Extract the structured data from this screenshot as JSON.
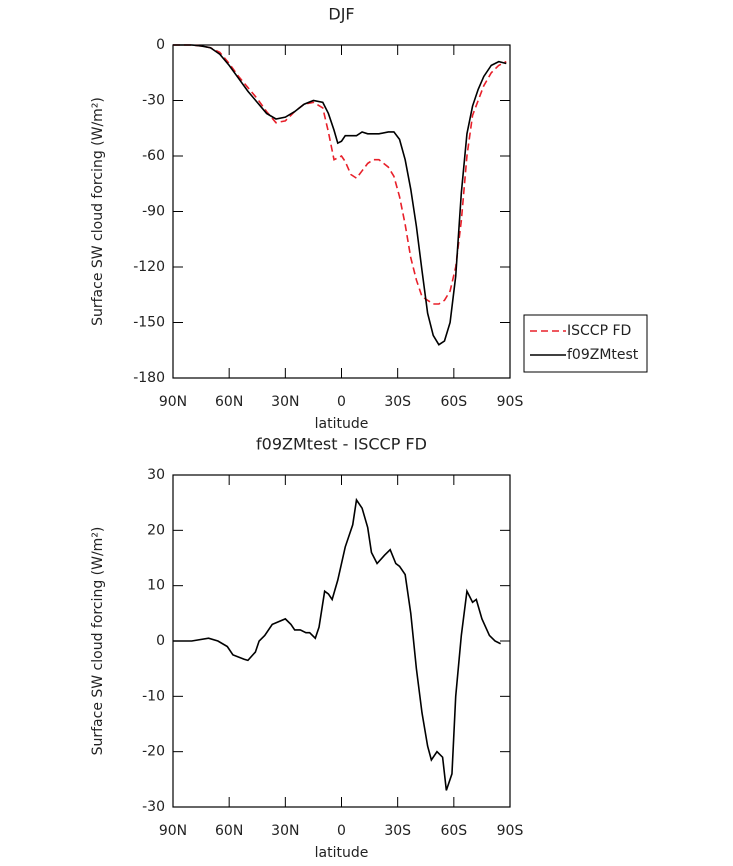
{
  "chart_data": [
    {
      "type": "line",
      "title": "DJF",
      "x_label": "latitude",
      "y_label": "Surface SW cloud forcing (W/m²)",
      "x": [
        90,
        85,
        80,
        75,
        70,
        65,
        60,
        55,
        50,
        45,
        40,
        35,
        30,
        25,
        20,
        15,
        10,
        7,
        4,
        2,
        0,
        -2,
        -5,
        -8,
        -11,
        -14,
        -17,
        -20,
        -25,
        -28,
        -31,
        -34,
        -37,
        -40,
        -43,
        -46,
        -49,
        -52,
        -55,
        -58,
        -61,
        -64,
        -67,
        -70,
        -73,
        -76,
        -80,
        -84,
        -88
      ],
      "series": [
        {
          "name": "ISCCP FD",
          "color": "#e8202a",
          "line_style": "dashed",
          "values": [
            0,
            0,
            0,
            -0.5,
            -1.5,
            -4,
            -10,
            -17,
            -23,
            -29,
            -36,
            -42,
            -41,
            -36,
            -32,
            -31,
            -34,
            -47,
            -62,
            -61,
            -60,
            -63,
            -70,
            -72,
            -68,
            -64,
            -62,
            -62,
            -66,
            -71,
            -82,
            -97,
            -115,
            -127,
            -136,
            -138,
            -140,
            -140,
            -138,
            -133,
            -120,
            -95,
            -60,
            -38,
            -30,
            -22,
            -15,
            -11,
            -9
          ]
        },
        {
          "name": "f09ZMtest",
          "color": "#000000",
          "line_style": "solid",
          "values": [
            0,
            0,
            0,
            -0.5,
            -1.5,
            -5,
            -11,
            -18,
            -25,
            -31,
            -37,
            -40,
            -39,
            -36,
            -32,
            -30,
            -31,
            -37,
            -46,
            -53,
            -52,
            -49,
            -49,
            -49,
            -47,
            -48,
            -48,
            -48,
            -47,
            -47,
            -51,
            -62,
            -78,
            -98,
            -122,
            -145,
            -157,
            -162,
            -160,
            -150,
            -125,
            -80,
            -48,
            -33,
            -24,
            -17,
            -11,
            -9,
            -10
          ]
        }
      ],
      "xlim": [
        90,
        -90
      ],
      "xticks": [
        {
          "value": 90,
          "label": "90N"
        },
        {
          "value": 60,
          "label": "60N"
        },
        {
          "value": 30,
          "label": "30N"
        },
        0,
        {
          "value": -30,
          "label": "30S"
        },
        {
          "value": -60,
          "label": "60S"
        },
        {
          "value": -90,
          "label": "90S"
        }
      ],
      "ylim": [
        -180,
        0
      ],
      "yticks": [
        0,
        -30,
        -60,
        -90,
        -120,
        -150,
        -180
      ],
      "legend": "right"
    },
    {
      "type": "line",
      "title": "f09ZMtest - ISCCP FD",
      "x_label": "latitude",
      "y_label": "Surface SW cloud forcing (W/m²)",
      "x": [
        90,
        80,
        71,
        66,
        61,
        58,
        52,
        50,
        46,
        44,
        41,
        37,
        30,
        27,
        25,
        22,
        19,
        17,
        14,
        12,
        9,
        7,
        5,
        2,
        -2,
        -6,
        -8,
        -11,
        -14,
        -16,
        -19,
        -23,
        -26,
        -29,
        -31,
        -34,
        -37,
        -40,
        -43,
        -46,
        -48,
        -51,
        -54,
        -56,
        -59,
        -61,
        -64,
        -67,
        -70,
        -72,
        -75,
        -79,
        -82,
        -85
      ],
      "series": [
        {
          "color": "#000000",
          "line_style": "solid",
          "values": [
            0,
            0,
            0.5,
            0,
            -1,
            -2.5,
            -3.3,
            -3.5,
            -2,
            0,
            1,
            3,
            4,
            3,
            2,
            2,
            1.5,
            1.5,
            0.5,
            2.5,
            9,
            8.5,
            7.5,
            11,
            17,
            21,
            25.5,
            24,
            20.5,
            16,
            14,
            15.5,
            16.5,
            14,
            13.5,
            12,
            5,
            -5,
            -13,
            -19,
            -21.5,
            -20,
            -21,
            -27,
            -24,
            -10,
            1,
            9,
            7,
            7.5,
            4,
            1,
            0,
            -0.5
          ]
        }
      ],
      "xlim": [
        90,
        -90
      ],
      "xticks": [
        {
          "value": 90,
          "label": "90N"
        },
        {
          "value": 60,
          "label": "60N"
        },
        {
          "value": 30,
          "label": "30N"
        },
        0,
        {
          "value": -30,
          "label": "30S"
        },
        {
          "value": -60,
          "label": "60S"
        },
        {
          "value": -90,
          "label": "90S"
        }
      ],
      "ylim": [
        -30,
        30
      ],
      "yticks": [
        -30,
        -20,
        -10,
        0,
        10,
        20,
        30
      ]
    }
  ]
}
